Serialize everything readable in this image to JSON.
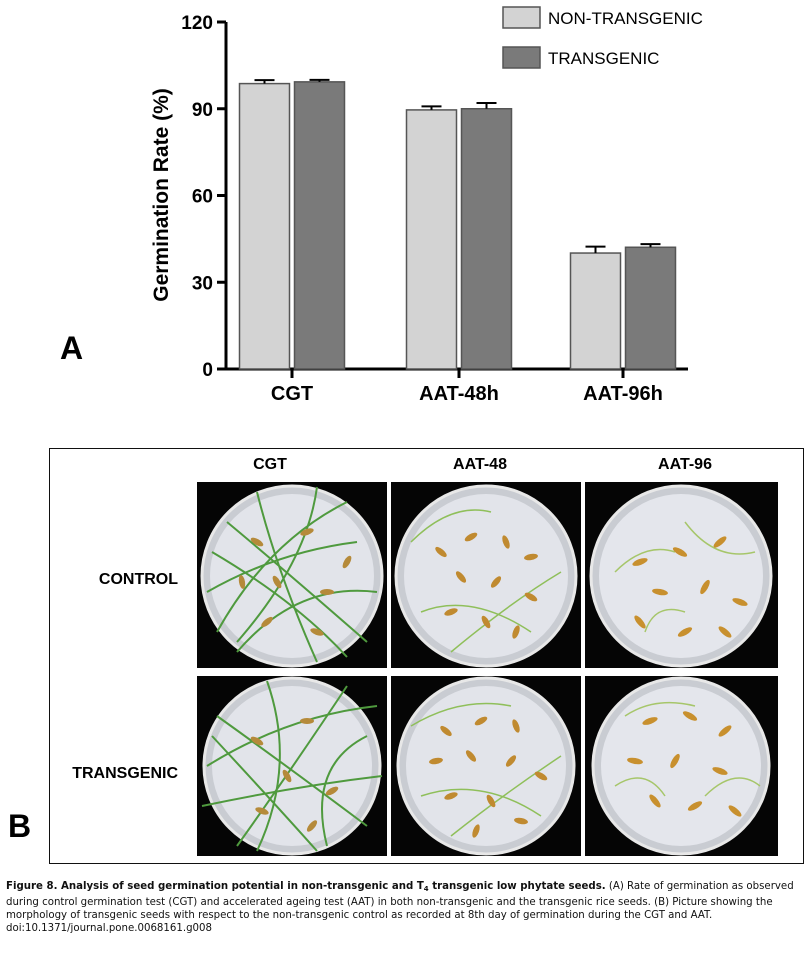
{
  "panel_a_label": "A",
  "panel_b_label": "B",
  "chart_data": {
    "type": "bar",
    "ylabel": "Germination Rate (%)",
    "xlabel": "",
    "ylim": [
      0,
      120
    ],
    "yticks": [
      "0",
      "30",
      "60",
      "90",
      "120"
    ],
    "categories": [
      "CGT",
      "AAT-48h",
      "AAT-96h"
    ],
    "series": [
      {
        "name": "NON-TRANSGENIC",
        "color": "#d3d3d3",
        "values": [
          98.7,
          89.6,
          40.1
        ],
        "errors": [
          1.2,
          1.2,
          2.2
        ]
      },
      {
        "name": "TRANSGENIC",
        "color": "#7a7a7a",
        "values": [
          99.3,
          90.0,
          42.1
        ],
        "errors": [
          0.7,
          2.0,
          1.1
        ]
      }
    ],
    "legend_position": "top-right",
    "grid": false
  },
  "panel_b": {
    "columns": [
      "CGT",
      "AAT-48",
      "AAT-96"
    ],
    "rows": [
      "CONTROL",
      "TRANSGENIC"
    ]
  },
  "caption": {
    "title_prefix": "Figure 8. Analysis of seed germination potential in non-transgenic and T",
    "title_sub": "4",
    "title_suffix": " transgenic low phytate seeds.",
    "body": " (A) Rate of germination as observed during control germination test (CGT) and accelerated ageing test (AAT) in both non-transgenic and the transgenic rice seeds. (B) Picture showing the morphology of transgenic seeds with respect to the non-transgenic control as recorded at 8th day of germination during the CGT and AAT.",
    "doi": "doi:10.1371/journal.pone.0068161.g008"
  }
}
